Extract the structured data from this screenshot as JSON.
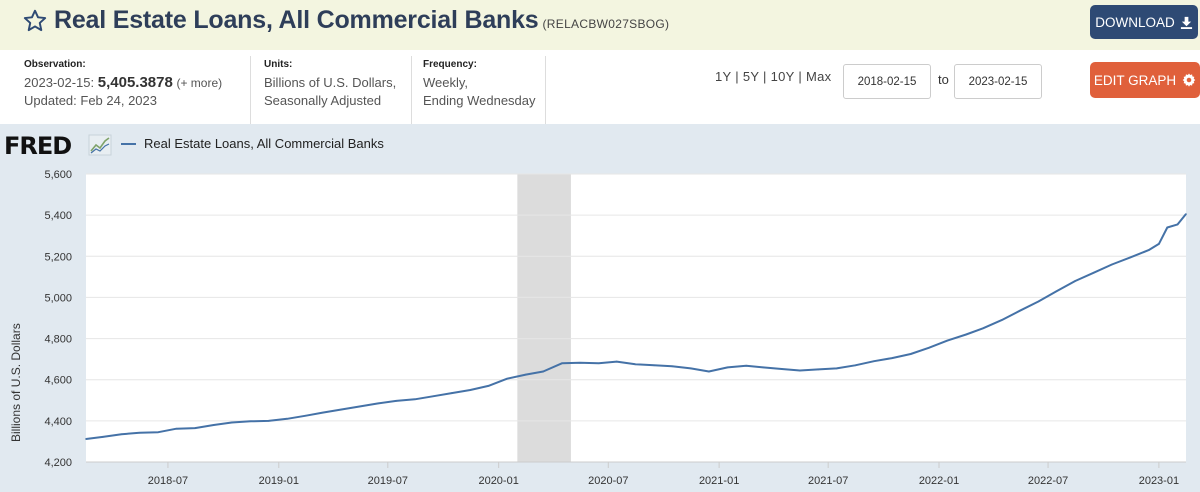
{
  "header": {
    "title": "Real Estate Loans, All Commercial Banks",
    "series_id": "(RELACBW027SBOG)",
    "download_label": "DOWNLOAD"
  },
  "info": {
    "observation_label": "Observation:",
    "observation_date": "2023-02-15:",
    "observation_value": "5,405.3878",
    "observation_more": "(+ more)",
    "updated": "Updated: Feb 24, 2023",
    "units_label": "Units:",
    "units_line1": "Billions of U.S. Dollars,",
    "units_line2": "Seasonally Adjusted",
    "frequency_label": "Frequency:",
    "frequency_line1": "Weekly,",
    "frequency_line2": "Ending Wednesday"
  },
  "controls": {
    "range_1y": "1Y",
    "range_5y": "5Y",
    "range_10y": "10Y",
    "range_max": "Max",
    "range_sep": "|",
    "start_date": "2018-02-15",
    "to_label": "to",
    "end_date": "2023-02-15",
    "edit_graph_label": "EDIT GRAPH"
  },
  "chart": {
    "logo": "FRED",
    "legend_label": "Real Estate Loans, All Commercial Banks",
    "line_color": "#4572a7",
    "recession_color": "#dcdcdc"
  },
  "chart_data": {
    "type": "line",
    "title": "",
    "xlabel": "",
    "ylabel": "Billions of U.S. Dollars",
    "ylim": [
      4200,
      5600
    ],
    "yticks": [
      "4,200",
      "4,400",
      "4,600",
      "4,800",
      "5,000",
      "5,200",
      "5,400",
      "5,600"
    ],
    "ytick_values": [
      4200,
      4400,
      4600,
      4800,
      5000,
      5200,
      5400,
      5600
    ],
    "xlim": [
      "2018-02-15",
      "2023-02-15"
    ],
    "xticks": [
      "2018-07",
      "2019-01",
      "2019-07",
      "2020-01",
      "2020-07",
      "2021-01",
      "2021-07",
      "2022-01",
      "2022-07",
      "2023-01"
    ],
    "recession": {
      "start": "2020-02-01",
      "end": "2020-04-30"
    },
    "grid": true,
    "series": [
      {
        "name": "Real Estate Loans, All Commercial Banks",
        "x": [
          "2018-02-15",
          "2018-03-15",
          "2018-04-15",
          "2018-05-15",
          "2018-06-15",
          "2018-07-15",
          "2018-08-15",
          "2018-09-15",
          "2018-10-15",
          "2018-11-15",
          "2018-12-15",
          "2019-01-15",
          "2019-02-15",
          "2019-03-15",
          "2019-04-15",
          "2019-05-15",
          "2019-06-15",
          "2019-07-15",
          "2019-08-15",
          "2019-09-15",
          "2019-10-15",
          "2019-11-15",
          "2019-12-15",
          "2020-01-15",
          "2020-02-15",
          "2020-03-15",
          "2020-04-15",
          "2020-05-15",
          "2020-06-15",
          "2020-07-15",
          "2020-08-15",
          "2020-09-15",
          "2020-10-15",
          "2020-11-15",
          "2020-12-15",
          "2021-01-15",
          "2021-02-15",
          "2021-03-15",
          "2021-04-15",
          "2021-05-15",
          "2021-06-15",
          "2021-07-15",
          "2021-08-15",
          "2021-09-15",
          "2021-10-15",
          "2021-11-15",
          "2021-12-15",
          "2022-01-15",
          "2022-02-15",
          "2022-03-15",
          "2022-04-15",
          "2022-05-15",
          "2022-06-15",
          "2022-07-15",
          "2022-08-15",
          "2022-09-15",
          "2022-10-15",
          "2022-11-15",
          "2022-12-15",
          "2023-01-01",
          "2023-01-15",
          "2023-02-01",
          "2023-02-15"
        ],
        "values": [
          4312,
          4322,
          4335,
          4342,
          4345,
          4362,
          4365,
          4380,
          4392,
          4398,
          4400,
          4410,
          4425,
          4440,
          4455,
          4470,
          4485,
          4497,
          4505,
          4520,
          4535,
          4550,
          4570,
          4605,
          4625,
          4640,
          4680,
          4682,
          4680,
          4688,
          4675,
          4670,
          4665,
          4655,
          4640,
          4660,
          4668,
          4660,
          4652,
          4645,
          4650,
          4655,
          4670,
          4690,
          4705,
          4725,
          4755,
          4790,
          4820,
          4850,
          4890,
          4935,
          4980,
          5030,
          5080,
          5120,
          5160,
          5195,
          5230,
          5260,
          5340,
          5355,
          5405.3878
        ]
      }
    ]
  }
}
